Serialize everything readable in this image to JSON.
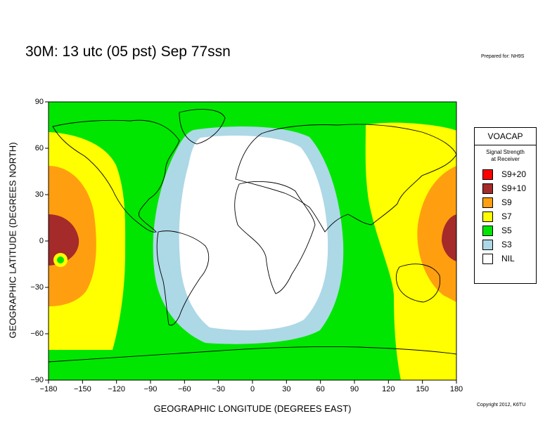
{
  "title": "30M:  13 utc (05 pst) Sep 77ssn",
  "prepared_for": "Prepared for: NH9S",
  "copyright": "Copyright 2012, K6TU",
  "axes": {
    "x_label": "GEOGRAPHIC LONGITUDE (DEGREES EAST)",
    "y_label": "GEOGRAPHIC LATITUDE (DEGREES NORTH)",
    "x_ticks": [
      "−180",
      "−150",
      "−120",
      "−90",
      "−60",
      "−30",
      "0",
      "30",
      "60",
      "90",
      "120",
      "150",
      "180"
    ],
    "y_ticks": [
      "90",
      "60",
      "30",
      "0",
      "−30",
      "−60",
      "−90"
    ]
  },
  "legend": {
    "title": "VOACAP",
    "subtitle_line1": "Signal Strength",
    "subtitle_line2": "at Receiver",
    "items": [
      {
        "label": "S9+20",
        "color": "#ff0000"
      },
      {
        "label": "S9+10",
        "color": "#a52a2a"
      },
      {
        "label": "S9",
        "color": "#ff9f0f"
      },
      {
        "label": "S7",
        "color": "#ffff00"
      },
      {
        "label": "S5",
        "color": "#00e600"
      },
      {
        "label": "S3",
        "color": "#add8e6"
      },
      {
        "label": "NIL",
        "color": "#ffffff"
      }
    ]
  },
  "chart_data": {
    "type": "heatmap",
    "x_range": [
      -180,
      180
    ],
    "y_range": [
      -90,
      90
    ],
    "background_level": "S5",
    "regions": [
      {
        "level": "S7",
        "description": "west Pacific / Asia-Australia band",
        "lon_range": [
          100,
          180
        ]
      },
      {
        "level": "S7",
        "description": "east Pacific band",
        "lon_range": [
          -180,
          -115
        ]
      },
      {
        "level": "S9",
        "center": [
          -180,
          -5
        ]
      },
      {
        "level": "S9+10",
        "center": [
          -180,
          5
        ]
      },
      {
        "level": "S3",
        "center": [
          5,
          10
        ]
      },
      {
        "level": "NIL",
        "center": [
          5,
          10
        ]
      }
    ]
  }
}
